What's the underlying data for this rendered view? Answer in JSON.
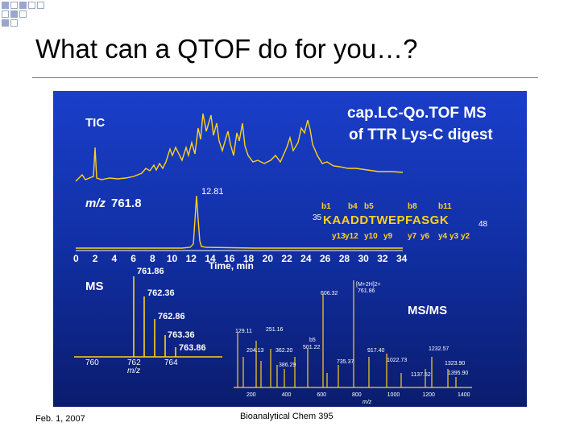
{
  "slide": {
    "title": "What can a QTOF do for you…?",
    "footer_date": "Feb. 1, 2007",
    "footer_center": "Bioanalytical Chem 395"
  },
  "figure": {
    "heading_line1": "cap.LC-Qo.TOF MS",
    "heading_line2": "of TTR Lys-C digest",
    "tic_label": "TIC",
    "mz_label_prefix": "m/z",
    "mz_label_value": "761.8",
    "peak_label": "12.81",
    "time_ticks": [
      "0",
      "2",
      "4",
      "6",
      "8",
      "10",
      "12",
      "14",
      "16",
      "18",
      "20",
      "22",
      "24",
      "26",
      "28",
      "30",
      "32",
      "34"
    ],
    "time_axis_label": "Time, min",
    "ms_label": "MS",
    "msms_label": "MS/MS",
    "ms_peaks": [
      "761.86",
      "762.36",
      "762.86",
      "763.36",
      "763.86"
    ],
    "ms_ticks": [
      "760",
      "762",
      "764"
    ],
    "ms_axis_label": "m/z",
    "sequence": {
      "start": "35",
      "end": "48",
      "residues": [
        "K",
        "A",
        "A",
        "D",
        "D",
        "T",
        "W",
        "E",
        "P",
        "F",
        "A",
        "S",
        "G",
        "K"
      ],
      "b_ions": [
        "b1",
        "b4",
        "b5",
        "b8",
        "b11"
      ],
      "y_ions": [
        "y13",
        "y12",
        "y10",
        "y9",
        "y7",
        "y6",
        "y4",
        "y3",
        "y2"
      ]
    },
    "msms_peaks": [
      "129.11",
      "251.16",
      "204.13",
      "362.20",
      "386.29",
      "501.22",
      "b5",
      "606.32",
      "[M+2H]2+",
      "761.86",
      "735.37",
      "917.40",
      "1022.73",
      "1137.52",
      "1232.57",
      "1323.90",
      "1395.90"
    ],
    "msms_ticks": [
      "200",
      "400",
      "600",
      "800",
      "1000",
      "1200",
      "1400"
    ],
    "msms_axis_label": "m/z",
    "colors": {
      "background": "#1a3ec9",
      "trace": "#ffd21a",
      "text": "#ffffff"
    }
  }
}
